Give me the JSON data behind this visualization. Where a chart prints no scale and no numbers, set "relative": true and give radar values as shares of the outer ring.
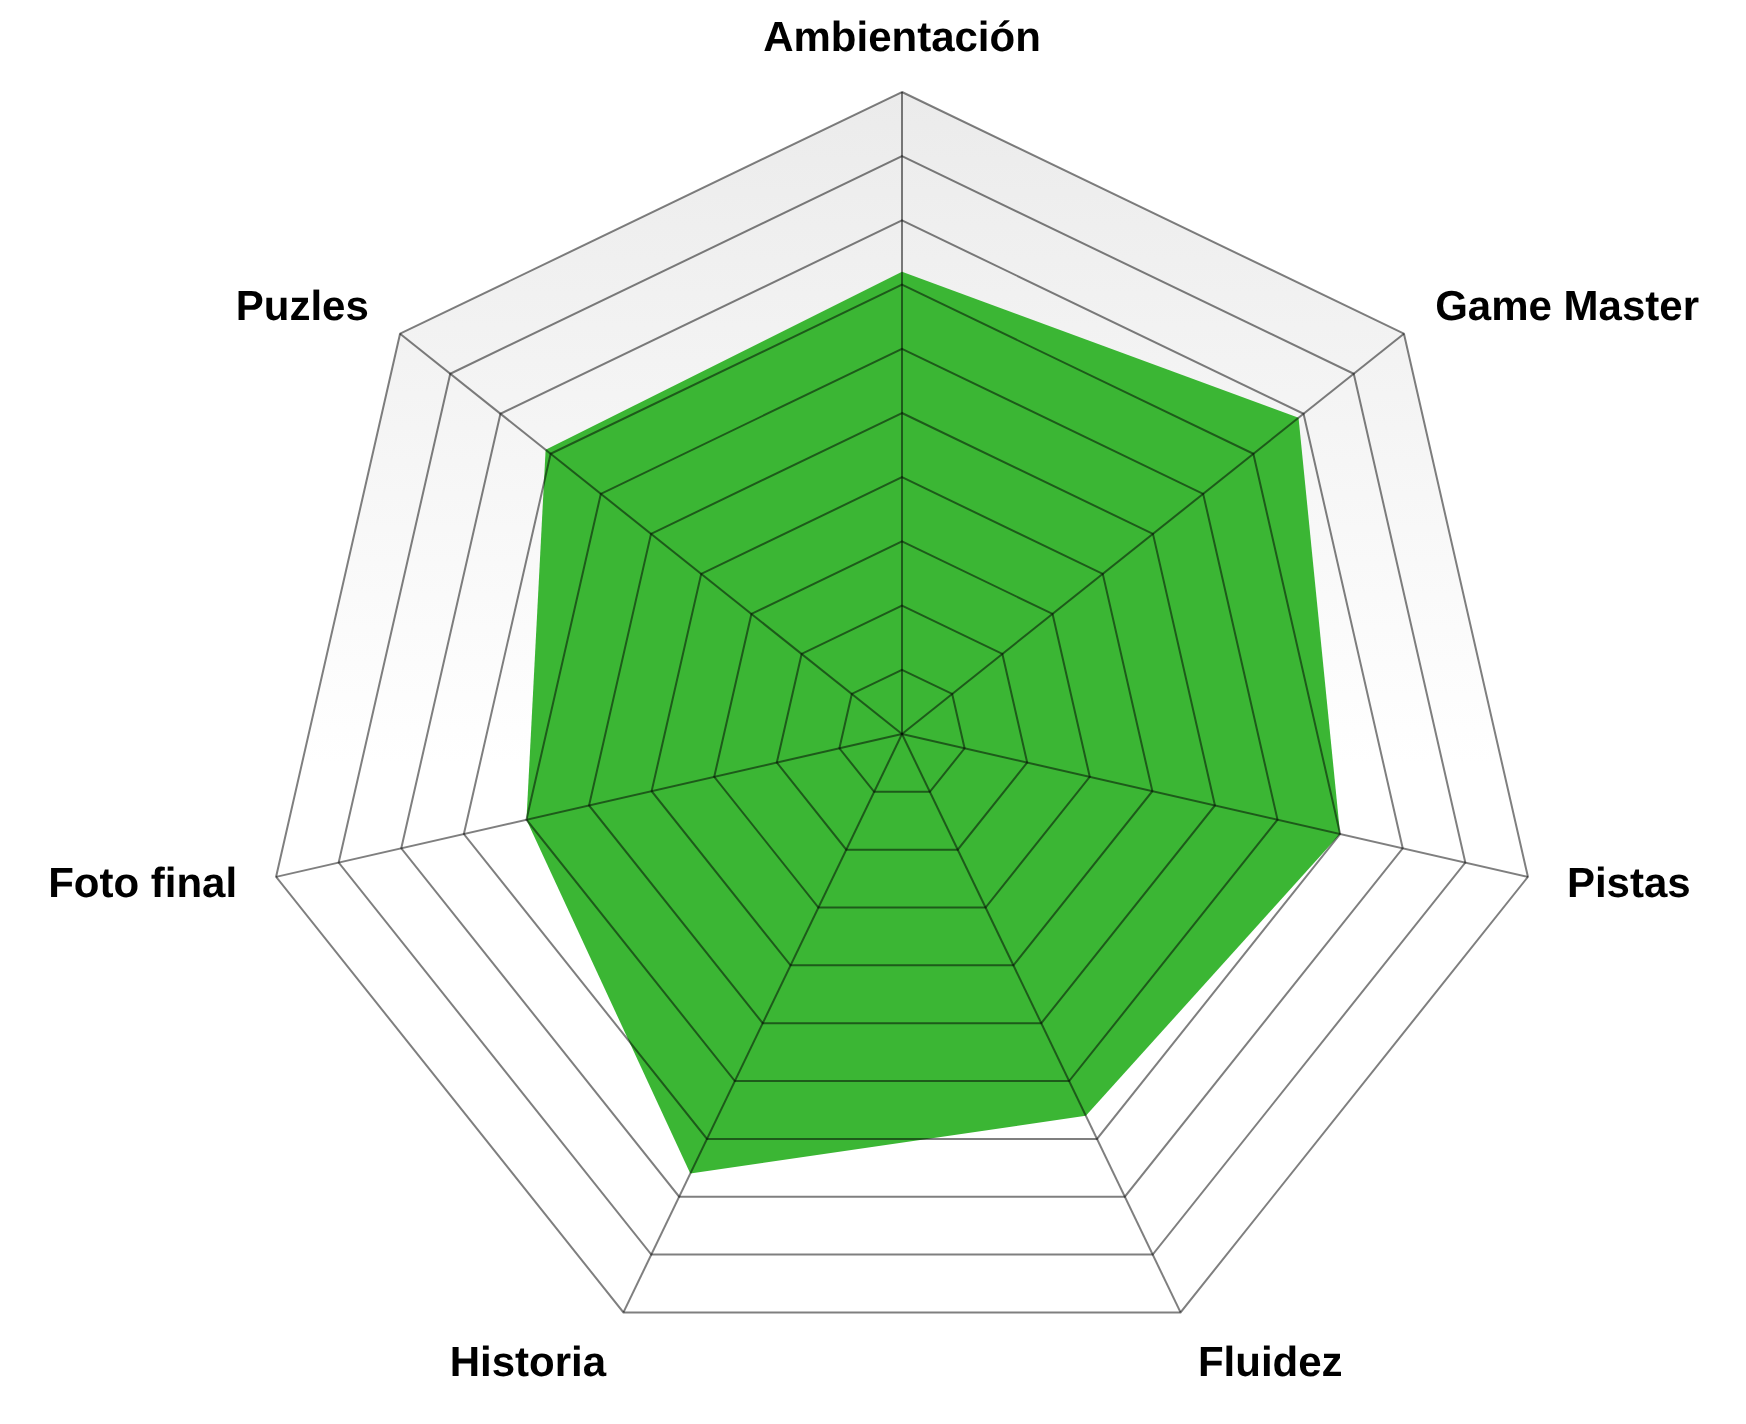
{
  "chart_data": {
    "type": "radar",
    "relative": true,
    "categories": [
      "Ambientación",
      "Game Master",
      "Pistas",
      "Fluidez",
      "Historia",
      "Foto final",
      "Puzles"
    ],
    "series": [
      {
        "color": "#3bb634",
        "values": [
          0.72,
          0.79,
          0.7,
          0.66,
          0.76,
          0.6,
          0.71
        ]
      }
    ]
  }
}
